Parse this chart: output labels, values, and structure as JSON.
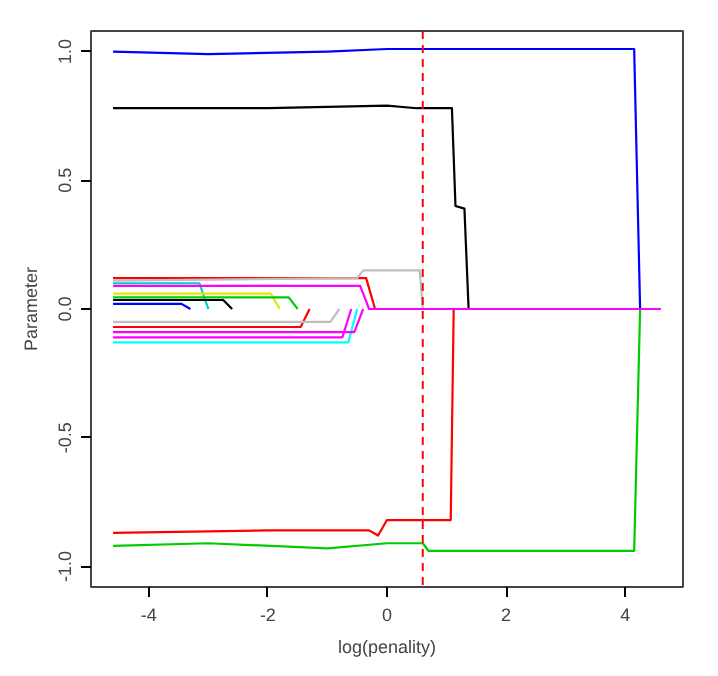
{
  "chart_data": {
    "type": "line",
    "xlabel": "log(penality)",
    "ylabel": "Parameter",
    "xlim": [
      -4.97,
      4.97
    ],
    "ylim": [
      -1.08,
      1.08
    ],
    "xticks": [
      -4,
      -2,
      0,
      2,
      4
    ],
    "yticks": [
      {
        "value": -1,
        "label": "-1.0"
      },
      {
        "value": -0.5,
        "label": "-0.5"
      },
      {
        "value": 0,
        "label": "0.0"
      },
      {
        "value": 0.5,
        "label": "0.5"
      },
      {
        "value": 1,
        "label": "1.0"
      }
    ],
    "grid": false,
    "line_style": "solid",
    "marker": "none",
    "ref_lines": [
      {
        "axis": "x",
        "value": 0.6,
        "color": "#ff0000",
        "line_style": "dashed"
      }
    ],
    "series": [
      {
        "color": "#00cdcd",
        "x": [
          -4.6,
          -3.15,
          -3.0
        ],
        "values": [
          0.1,
          0.1,
          0
        ]
      },
      {
        "color": "#0000ff",
        "x": [
          -4.6,
          -3.45,
          -3.3
        ],
        "values": [
          0.02,
          0.02,
          0
        ]
      },
      {
        "color": "#000000",
        "x": [
          -4.6,
          -2.75,
          -2.6
        ],
        "values": [
          0.035,
          0.035,
          0
        ]
      },
      {
        "color": "#e5e500",
        "x": [
          -4.6,
          -1.95,
          -1.8
        ],
        "values": [
          0.06,
          0.06,
          0
        ]
      },
      {
        "color": "#00cd00",
        "x": [
          -4.6,
          -1.65,
          -1.5
        ],
        "values": [
          0.045,
          0.045,
          0
        ]
      },
      {
        "color": "#ff0000",
        "x": [
          -4.6,
          -1.45,
          -1.3
        ],
        "values": [
          -0.07,
          -0.07,
          0
        ]
      },
      {
        "color": "#bebebe",
        "x": [
          -4.6,
          -0.95,
          -0.8
        ],
        "values": [
          -0.05,
          -0.05,
          0
        ]
      },
      {
        "color": "#00ffff",
        "x": [
          -4.6,
          -0.65,
          -0.5
        ],
        "values": [
          -0.13,
          -0.13,
          0
        ]
      },
      {
        "color": "#ff00ff",
        "x": [
          -4.6,
          -0.75,
          -0.6
        ],
        "values": [
          -0.11,
          -0.11,
          0
        ]
      },
      {
        "color": "#ff00ff",
        "x": [
          -4.6,
          -0.55,
          -0.4
        ],
        "values": [
          -0.09,
          -0.09,
          0
        ]
      },
      {
        "color": "#ff0000",
        "x": [
          -4.6,
          -0.35,
          -0.2
        ],
        "values": [
          0.12,
          0.12,
          0
        ]
      },
      {
        "color": "#bebebe",
        "x": [
          -4.6,
          -0.5,
          -0.4,
          0.55,
          0.6
        ],
        "values": [
          0.11,
          0.12,
          0.15,
          0.15,
          0
        ]
      },
      {
        "color": "#000000",
        "x": [
          -4.6,
          -2,
          0,
          0.5,
          1.09,
          1.15,
          1.3,
          1.37
        ],
        "values": [
          0.78,
          0.78,
          0.79,
          0.78,
          0.78,
          0.4,
          0.39,
          0
        ]
      },
      {
        "color": "#ff0000",
        "x": [
          -4.6,
          -2,
          -0.3,
          -0.15,
          0,
          1.07,
          1.12
        ],
        "values": [
          -0.87,
          -0.86,
          -0.86,
          -0.88,
          -0.82,
          -0.82,
          0
        ]
      },
      {
        "color": "#00cd00",
        "x": [
          -4.6,
          -3,
          -1,
          0,
          0.6,
          0.7,
          1.1,
          4.15,
          4.25
        ],
        "values": [
          -0.92,
          -0.91,
          -0.93,
          -0.91,
          -0.91,
          -0.94,
          -0.94,
          -0.94,
          0
        ]
      },
      {
        "color": "#0000ff",
        "x": [
          -4.6,
          -3,
          -1,
          0,
          2,
          4.15,
          4.25
        ],
        "values": [
          1.0,
          0.99,
          1.0,
          1.01,
          1.01,
          1.01,
          0
        ]
      },
      {
        "color": "#ff00ff",
        "x": [
          -4.6,
          -0.45,
          -0.3,
          4.6
        ],
        "values": [
          0.09,
          0.09,
          0,
          0
        ]
      }
    ]
  }
}
